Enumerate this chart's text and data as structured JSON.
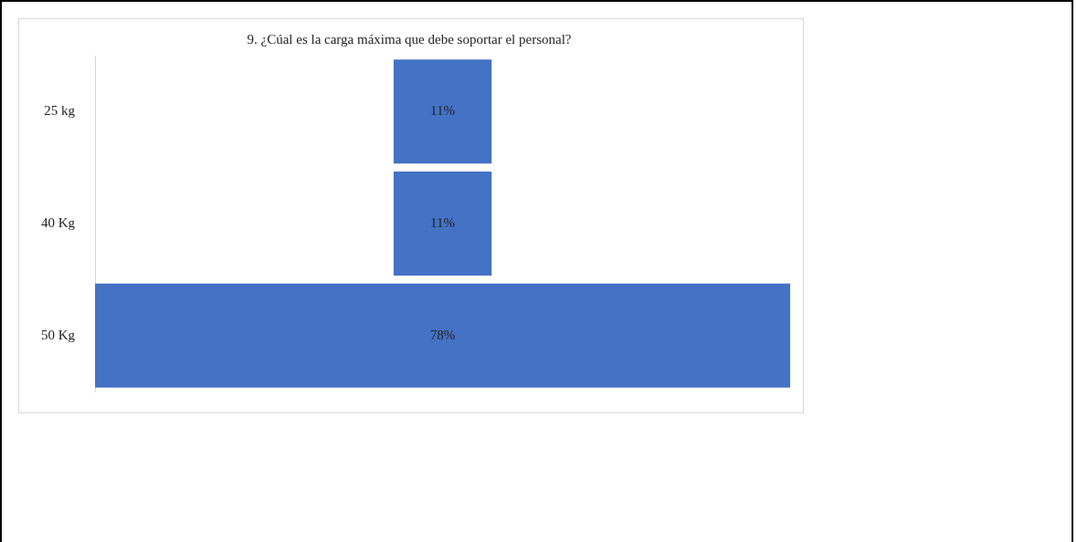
{
  "chart_data": {
    "type": "other",
    "title": "9. ¿Cúal es la carga máxima que debe soportar el personal?",
    "categories": [
      "25 kg",
      "40 Kg",
      "50 Kg"
    ],
    "values": [
      11,
      11,
      78
    ],
    "value_labels": [
      "11%",
      "11%",
      "78%"
    ],
    "color": "#4472c4"
  }
}
